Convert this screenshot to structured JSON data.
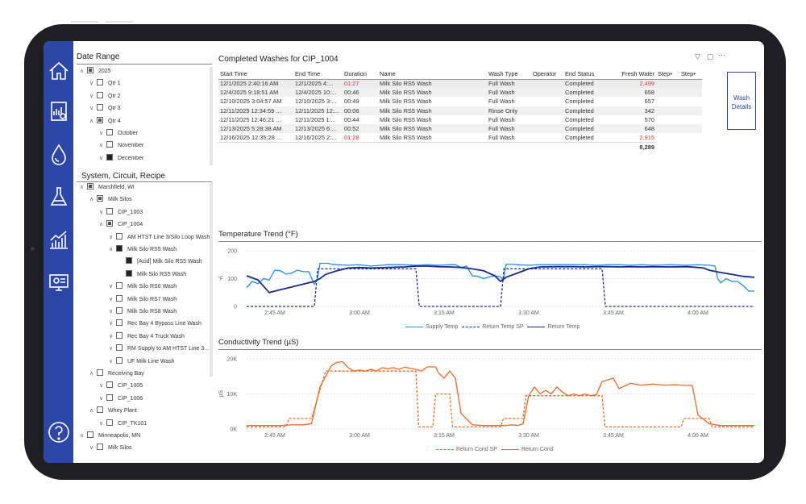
{
  "filters": {
    "date_range_title": "Date Range",
    "date_tree": [
      {
        "label": "2025",
        "level": 0,
        "expanded": true,
        "state": "partial"
      },
      {
        "label": "Qtr 1",
        "level": 1,
        "expanded": false,
        "state": "none"
      },
      {
        "label": "Qtr 2",
        "level": 1,
        "expanded": false,
        "state": "none"
      },
      {
        "label": "Qtr 3",
        "level": 1,
        "expanded": false,
        "state": "none"
      },
      {
        "label": "Qtr 4",
        "level": 1,
        "expanded": true,
        "state": "partial"
      },
      {
        "label": "October",
        "level": 2,
        "expanded": false,
        "state": "none"
      },
      {
        "label": "November",
        "level": 2,
        "expanded": false,
        "state": "none"
      },
      {
        "label": "December",
        "level": 2,
        "expanded": false,
        "state": "full"
      }
    ],
    "system_title": "System, Circuit, Recipe",
    "system_tree": [
      {
        "label": "Marshfield, WI",
        "level": 0,
        "expanded": true,
        "state": "partial"
      },
      {
        "label": "Milk Silos",
        "level": 1,
        "expanded": true,
        "state": "partial"
      },
      {
        "label": "CIP_1003",
        "level": 2,
        "expanded": false,
        "state": "none"
      },
      {
        "label": "CIP_1004",
        "level": 2,
        "expanded": true,
        "state": "partial"
      },
      {
        "label": "AM HTST Line 3/Silo Loop Wash",
        "level": 3,
        "expanded": false,
        "state": "none"
      },
      {
        "label": "Milk Silo RS5 Wash",
        "level": 3,
        "expanded": true,
        "state": "full"
      },
      {
        "label": "[Acid] Milk Silo RS5 Wash",
        "level": 4,
        "expanded": false,
        "state": "full",
        "noChev": true
      },
      {
        "label": "Milk Silo RS5 Wash",
        "level": 4,
        "expanded": false,
        "state": "full",
        "noChev": true
      },
      {
        "label": "Milk Silo RS6 Wash",
        "level": 3,
        "expanded": false,
        "state": "none"
      },
      {
        "label": "Milk Silo RS7 Wash",
        "level": 3,
        "expanded": false,
        "state": "none"
      },
      {
        "label": "Milk Silo RS8 Wash",
        "level": 3,
        "expanded": false,
        "state": "none"
      },
      {
        "label": "Rec Bay 4 Bypass Line Wash",
        "level": 3,
        "expanded": false,
        "state": "none"
      },
      {
        "label": "Rec Bay 4 Truck Wash",
        "level": 3,
        "expanded": false,
        "state": "none"
      },
      {
        "label": "RM Supply to AM HTST Line 3...",
        "level": 3,
        "expanded": false,
        "state": "none"
      },
      {
        "label": "UF Milk Line Wash",
        "level": 3,
        "expanded": false,
        "state": "none"
      },
      {
        "label": "Receiving Bay",
        "level": 1,
        "expanded": true,
        "state": "none"
      },
      {
        "label": "CIP_1005",
        "level": 2,
        "expanded": false,
        "state": "none"
      },
      {
        "label": "CIP_1006",
        "level": 2,
        "expanded": false,
        "state": "none"
      },
      {
        "label": "Whey Plant",
        "level": 1,
        "expanded": true,
        "state": "none"
      },
      {
        "label": "CIP_TK101",
        "level": 2,
        "expanded": false,
        "state": "none"
      },
      {
        "label": "Minneapolis, MN",
        "level": 0,
        "expanded": true,
        "state": "none"
      },
      {
        "label": "Milk Silos",
        "level": 1,
        "expanded": false,
        "state": "none"
      }
    ]
  },
  "table": {
    "title": "Completed Washes for CIP_1004",
    "columns": [
      "Start Time",
      "End Time",
      "Duration",
      "Name",
      "Wash Type",
      "Operator",
      "End Status",
      "Fresh Water",
      "Step•",
      "Step•"
    ],
    "rows": [
      {
        "start": "12/1/2025 2:40:16 AM",
        "end": "12/1/2025 4:...",
        "duration": "01:27",
        "dur_red": true,
        "name": "Milk Silo RS5 Wash",
        "type": "Full Wash",
        "operator": "",
        "status": "Completed",
        "water": "2,499",
        "water_red": true
      },
      {
        "start": "12/4/2025 9:18:51 AM",
        "end": "12/4/2025 10:...",
        "duration": "00:46",
        "dur_red": false,
        "name": "Milk Silo RS5 Wash",
        "type": "Full Wash",
        "operator": "",
        "status": "Completed",
        "water": "658",
        "water_red": false
      },
      {
        "start": "12/10/2025 3:04:57 AM",
        "end": "12/10/2025 3:...",
        "duration": "00:49",
        "dur_red": false,
        "name": "Milk Silo RS5 Wash",
        "type": "Full Wash",
        "operator": "",
        "status": "Completed",
        "water": "657",
        "water_red": false
      },
      {
        "start": "12/11/2025 12:34:59 ...",
        "end": "12/11/2025 12:...",
        "duration": "00:06",
        "dur_red": false,
        "name": "Milk Silo RS5 Wash",
        "type": "Rinse Only",
        "operator": "",
        "status": "Completed",
        "water": "342",
        "water_red": false
      },
      {
        "start": "12/11/2025 12:46:21 ...",
        "end": "12/11/2025 1:...",
        "duration": "00:44",
        "dur_red": false,
        "name": "Milk Silo RS5 Wash",
        "type": "Full Wash",
        "operator": "",
        "status": "Completed",
        "water": "570",
        "water_red": false
      },
      {
        "start": "12/13/2025 5:28:38 AM",
        "end": "12/13/2025 6:...",
        "duration": "00:52",
        "dur_red": false,
        "name": "Milk Silo RS5 Wash",
        "type": "Full Wash",
        "operator": "",
        "status": "Completed",
        "water": "648",
        "water_red": false
      },
      {
        "start": "12/16/2025 12:35:28 ...",
        "end": "12/16/2025 2:...",
        "duration": "01:28",
        "dur_red": true,
        "name": "Milk Silo RS5 Wash",
        "type": "Full Wash",
        "operator": "",
        "status": "Completed",
        "water": "2,915",
        "water_red": true
      }
    ],
    "total_water": "8,289",
    "wash_details_label": "Wash Details",
    "filter_icon": "filter-icon",
    "focus_icon": "focus-mode-icon",
    "more_icon": "more-options-icon"
  },
  "colors": {
    "nav": "#2d47a8",
    "supply_temp": "#1e90e8",
    "return_temp": "#1b2a8c",
    "conductivity": "#f06a25"
  },
  "chart_data": [
    {
      "type": "line",
      "title": "Temperature Trend (°F)",
      "ylabel": "°F",
      "ylim": [
        0,
        200
      ],
      "yticks": [
        0,
        100,
        200
      ],
      "xticks": [
        "2:45 AM",
        "3:00 AM",
        "3:15 AM",
        "3:30 AM",
        "3:45 AM",
        "4:00 AM"
      ],
      "xtick_minutes": [
        165,
        180,
        195,
        210,
        225,
        240
      ],
      "xlim": [
        160,
        250
      ],
      "series": [
        {
          "name": "Supply Temp",
          "style": "solid",
          "color": "#1e90e8",
          "x": [
            160,
            161,
            162,
            163,
            164,
            165,
            166,
            167,
            168,
            169,
            170,
            171,
            172,
            172.5,
            173,
            174,
            174.5,
            175,
            176,
            178,
            180,
            182,
            185,
            188,
            190,
            192,
            194,
            196,
            197,
            198,
            199,
            200,
            201,
            202,
            203,
            204,
            205,
            205.5,
            206,
            207,
            208,
            210,
            212,
            215,
            218,
            220,
            222,
            224,
            226,
            228,
            230,
            232,
            235,
            238,
            240,
            242,
            243,
            243.5,
            244,
            245,
            246,
            247,
            248,
            249,
            250
          ],
          "y": [
            68,
            90,
            82,
            100,
            95,
            130,
            128,
            116,
            120,
            130,
            125,
            125,
            80,
            95,
            155,
            155,
            155,
            152,
            150,
            148,
            150,
            145,
            150,
            150,
            148,
            150,
            148,
            150,
            150,
            140,
            145,
            110,
            108,
            100,
            106,
            110,
            106,
            95,
            152,
            152,
            150,
            148,
            150,
            150,
            150,
            150,
            148,
            150,
            150,
            148,
            150,
            148,
            150,
            148,
            150,
            148,
            145,
            100,
            85,
            100,
            90,
            90,
            75,
            55,
            55
          ]
        },
        {
          "name": "Return Temp SP",
          "style": "dashed",
          "color": "#1b2a8c",
          "x": [
            160,
            172,
            172.6,
            190,
            190.6,
            205,
            205.6,
            223,
            223.6,
            240,
            240.6,
            250
          ],
          "y": [
            0,
            0,
            135,
            135,
            0,
            0,
            135,
            135,
            0,
            0,
            0,
            0
          ]
        },
        {
          "name": "Return Temp",
          "style": "solid",
          "color": "#1b2a8c",
          "x": [
            160,
            162,
            164,
            166,
            168,
            170,
            172,
            173,
            174,
            176,
            178,
            180,
            182,
            185,
            188,
            190,
            192,
            194,
            196,
            198,
            200,
            202,
            204,
            205,
            206,
            208,
            210,
            212,
            215,
            218,
            220,
            222,
            224,
            226,
            228,
            230,
            232,
            235,
            238,
            240,
            241,
            242,
            244,
            246,
            248,
            250
          ],
          "y": [
            110,
            95,
            50,
            60,
            70,
            80,
            90,
            100,
            115,
            128,
            138,
            140,
            138,
            140,
            142,
            145,
            145,
            143,
            142,
            140,
            135,
            128,
            110,
            90,
            105,
            120,
            135,
            142,
            143,
            143,
            142,
            143,
            143,
            142,
            143,
            142,
            143,
            142,
            143,
            140,
            138,
            130,
            122,
            115,
            108,
            105
          ]
        }
      ]
    },
    {
      "type": "line",
      "title": "Conductivity Trend (µS)",
      "ylabel": "µS",
      "ylim": [
        0,
        20000
      ],
      "yticks": [
        "0K",
        "10K",
        "20K"
      ],
      "xticks": [
        "2:45 AM",
        "3:00 AM",
        "3:15 AM",
        "3:30 AM",
        "3:45 AM",
        "4:00 AM"
      ],
      "xtick_minutes": [
        165,
        180,
        195,
        210,
        225,
        240
      ],
      "xlim": [
        160,
        250
      ],
      "series": [
        {
          "name": "Return Cond SP",
          "style": "dashed",
          "color": "#f06a25",
          "x": [
            160,
            167,
            167.5,
            171,
            171.5,
            174,
            175,
            187,
            187.5,
            190,
            190.5,
            193,
            193.5,
            196,
            196.5,
            205,
            205.5,
            209,
            209.5,
            223,
            223.5,
            237,
            237.5,
            242,
            242.5,
            250
          ],
          "y": [
            600,
            600,
            3000,
            3000,
            3000,
            16500,
            16500,
            16500,
            16500,
            16500,
            600,
            600,
            10000,
            10000,
            600,
            600,
            3000,
            3000,
            9500,
            9500,
            600,
            600,
            3000,
            3000,
            600,
            600
          ]
        },
        {
          "name": "Return Cond",
          "style": "solid",
          "color": "#f06a25",
          "x": [
            160,
            164,
            166,
            168,
            170,
            171.5,
            173,
            175,
            176,
            177,
            178,
            179,
            180,
            181,
            182,
            183,
            184,
            185,
            186,
            187,
            188,
            190,
            191,
            192,
            193,
            193.5,
            194,
            195,
            196,
            197,
            198,
            200,
            202,
            204,
            206,
            207,
            208,
            209,
            210,
            211,
            212,
            213,
            214,
            215,
            216,
            217,
            218,
            219,
            220,
            221,
            222,
            223,
            224,
            225,
            226,
            228,
            230,
            232,
            234,
            236,
            237,
            238,
            238.5,
            239,
            240,
            242,
            244,
            246,
            248,
            250
          ],
          "y": [
            1000,
            1000,
            1000,
            1200,
            1200,
            1500,
            12000,
            18000,
            19000,
            19200,
            17500,
            16500,
            16800,
            16500,
            17000,
            16500,
            17500,
            17200,
            17500,
            17000,
            17600,
            17000,
            16500,
            17700,
            17700,
            17700,
            16000,
            14500,
            16500,
            14500,
            4500,
            1200,
            1000,
            1000,
            1000,
            1200,
            1000,
            1500,
            9500,
            12000,
            10000,
            11000,
            10000,
            12000,
            10500,
            9500,
            10000,
            9500,
            10000,
            9500,
            9800,
            13500,
            14000,
            14500,
            11500,
            13000,
            12500,
            12800,
            12500,
            12600,
            12500,
            12400,
            12500,
            12400,
            4000,
            1500,
            1000,
            1000,
            1000,
            1000
          ]
        }
      ]
    }
  ]
}
